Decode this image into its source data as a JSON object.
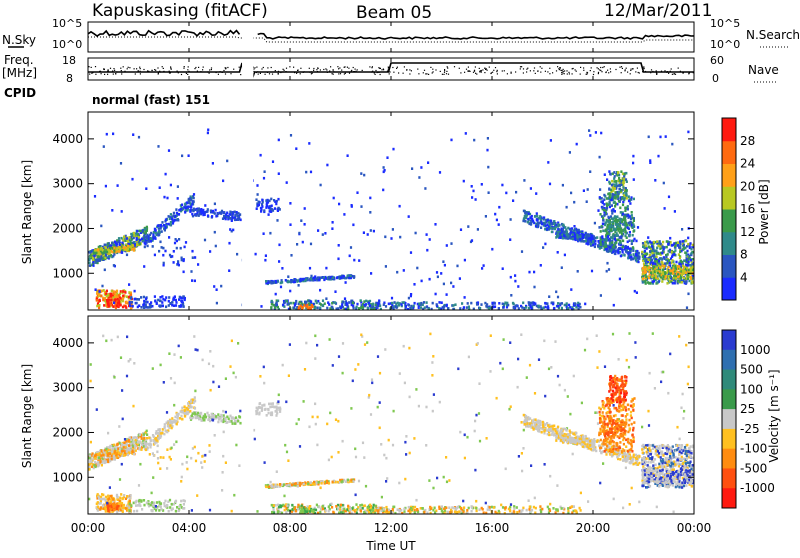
{
  "header": {
    "station": "Kapuskasing (fitACF)",
    "beam": "Beam 05",
    "date": "12/Mar/2011"
  },
  "top_strips": {
    "nsky_label": "N.Sky",
    "nsky_ticks": [
      "10^5",
      "10^0"
    ],
    "nsearch_label": "N.Search",
    "nsearch_ticks": [
      "10^5",
      "10^0"
    ],
    "freq_label_1": "Freq.",
    "freq_label_2": "[MHz]",
    "freq_ticks": [
      "18",
      "8"
    ],
    "nave_label": "Nave",
    "nave_ticks": [
      "60",
      "0"
    ],
    "cpid_label": "CPID",
    "cpid_value": "normal (fast) 151"
  },
  "chart_data": [
    {
      "type": "heatmap",
      "name": "power",
      "ylabel": "Slant Range [km]",
      "ylim": [
        180,
        4600
      ],
      "yticks": [
        "1000",
        "2000",
        "3000",
        "4000"
      ],
      "colorbar_label": "Power [dB]",
      "colorbar_ticks": [
        "4",
        "8",
        "12",
        "16",
        "20",
        "24",
        "28"
      ],
      "colorbar_colors": [
        "#1a2bff",
        "#2a56c0",
        "#2f8a8a",
        "#3a9a4a",
        "#b8c822",
        "#ffa018",
        "#ff6a10",
        "#ff1a10"
      ]
    },
    {
      "type": "heatmap",
      "name": "velocity",
      "ylabel": "Slant Range [km]",
      "ylim": [
        180,
        4600
      ],
      "yticks": [
        "1000",
        "2000",
        "3000",
        "4000"
      ],
      "colorbar_label": "Velocity [m s⁻¹]",
      "colorbar_ticks": [
        "1000",
        "500",
        "100",
        "25",
        "-25",
        "-100",
        "-500",
        "-1000"
      ],
      "colorbar_colors": [
        "#2a3bd0",
        "#2f6fb0",
        "#2f8a7a",
        "#3a9a4a",
        "#c8c8c8",
        "#ffc020",
        "#ff8c10",
        "#ff5010",
        "#ff1a10"
      ],
      "xlabel": "Time UT",
      "xticks": [
        "00:00",
        "04:00",
        "08:00",
        "12:00",
        "16:00",
        "20:00",
        "00:00"
      ]
    }
  ]
}
